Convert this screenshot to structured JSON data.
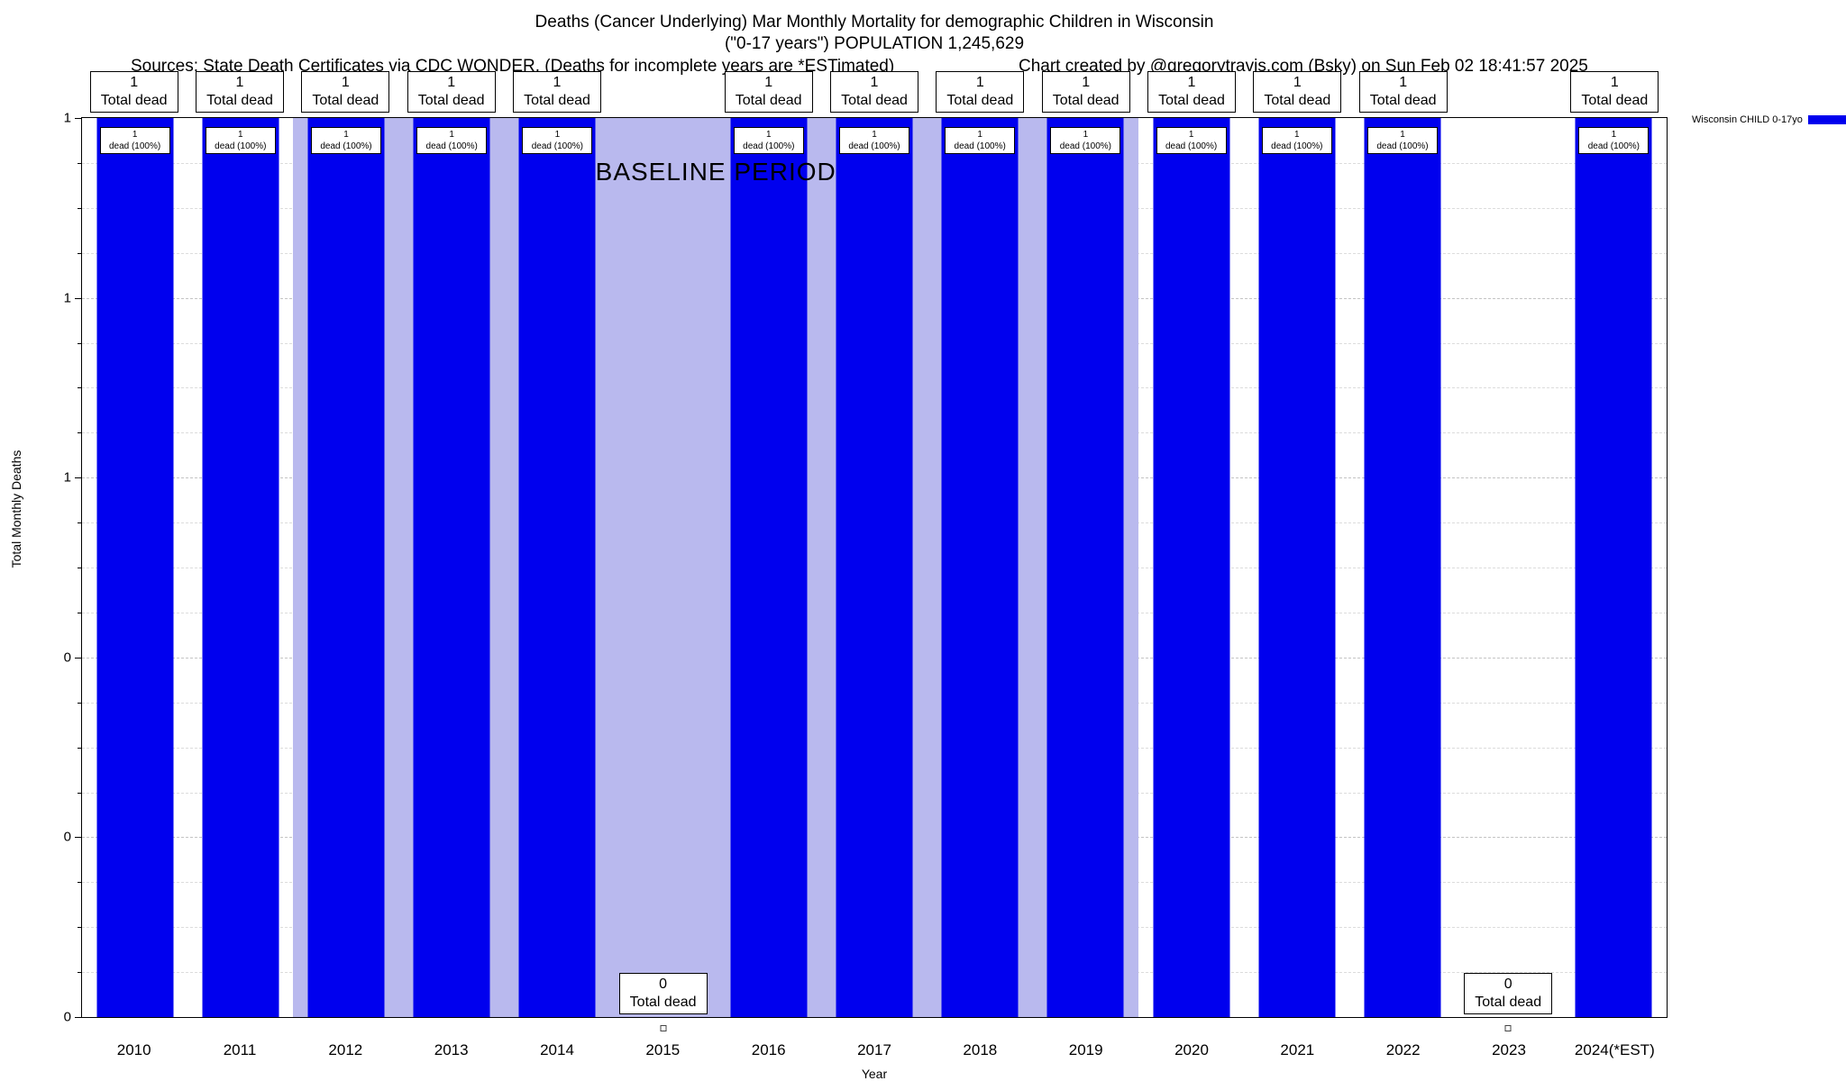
{
  "header": {
    "title": "Deaths (Cancer Underlying) Mar Monthly Mortality for demographic Children in Wisconsin",
    "subtitle": "(\"0-17 years\") POPULATION 1,245,629",
    "sources": "Sources: State Death Certificates via CDC WONDER. (Deaths for incomplete years are *ESTimated)",
    "credit": "Chart created by @gregorytravis.com (Bsky) on Sun Feb 02 18:41:57 2025"
  },
  "legend": {
    "label": "Wisconsin CHILD 0-17yo",
    "color": "#0000ee"
  },
  "chart_data": {
    "type": "bar",
    "title": "Deaths (Cancer Underlying) Mar Monthly Mortality for demographic Children in Wisconsin",
    "xlabel": "Year",
    "ylabel": "Total Monthly Deaths",
    "ylim": [
      0,
      1
    ],
    "grid": true,
    "legend_position": "top-right",
    "categories": [
      "2010",
      "2011",
      "2012",
      "2013",
      "2014",
      "2015",
      "2016",
      "2017",
      "2018",
      "2019",
      "2020",
      "2021",
      "2022",
      "2023",
      "2024(*EST)"
    ],
    "values": [
      1,
      1,
      1,
      1,
      1,
      0,
      1,
      1,
      1,
      1,
      1,
      1,
      1,
      0,
      1
    ],
    "bar_color": "#0000ee",
    "total_label": "Total dead",
    "pct_label": "dead (100%)",
    "y_ticks": [
      {
        "pos": 0.0,
        "label": "0"
      },
      {
        "pos": 0.2,
        "label": "0"
      },
      {
        "pos": 0.4,
        "label": "0"
      },
      {
        "pos": 0.6,
        "label": "1"
      },
      {
        "pos": 0.8,
        "label": "1"
      },
      {
        "pos": 1.0,
        "label": "1"
      }
    ],
    "baseline_region": {
      "label": "BASELINE PERIOD",
      "start_year": "2012",
      "end_year": "2019",
      "start_index": 2,
      "end_index": 9,
      "color": "#b9b9ee"
    }
  }
}
